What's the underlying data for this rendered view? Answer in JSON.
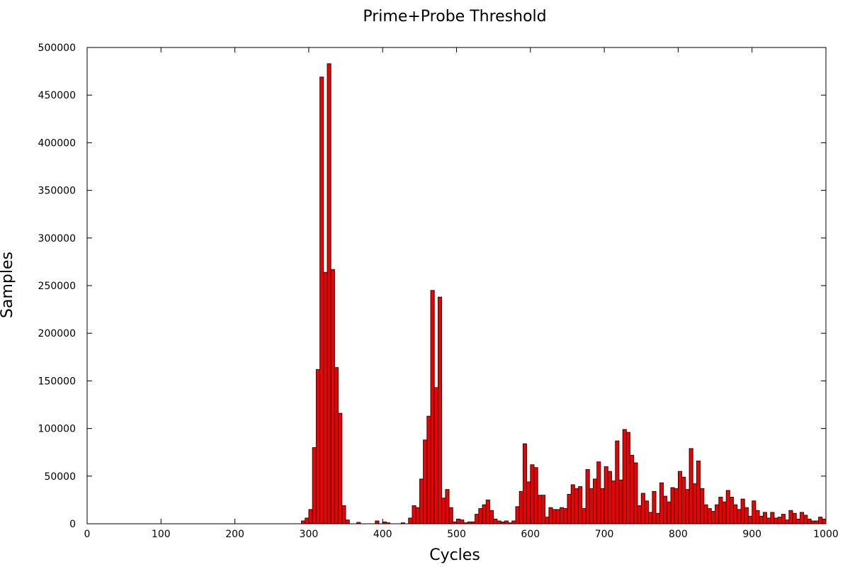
{
  "chart_data": {
    "type": "bar",
    "title": "Prime+Probe Threshold",
    "xlabel": "Cycles",
    "ylabel": "Samples",
    "xlim": [
      0,
      1000
    ],
    "ylim": [
      0,
      500000
    ],
    "x_ticks": [
      "0",
      "100",
      "200",
      "300",
      "400",
      "500",
      "600",
      "700",
      "800",
      "900",
      "1000"
    ],
    "y_ticks": [
      "0",
      "50000",
      "100000",
      "150000",
      "200000",
      "250000",
      "300000",
      "350000",
      "400000",
      "450000",
      "500000"
    ],
    "grid": false,
    "bar_width": 5,
    "bar_color": "#ee0000",
    "bar_stroke": "#000000",
    "x": [
      290,
      295,
      300,
      305,
      310,
      315,
      320,
      325,
      330,
      335,
      340,
      345,
      350,
      365,
      390,
      400,
      405,
      425,
      435,
      440,
      445,
      450,
      455,
      460,
      465,
      470,
      475,
      480,
      485,
      490,
      495,
      500,
      505,
      510,
      515,
      520,
      525,
      530,
      535,
      540,
      545,
      550,
      555,
      560,
      565,
      570,
      575,
      580,
      585,
      590,
      595,
      600,
      605,
      610,
      615,
      620,
      625,
      630,
      635,
      640,
      645,
      650,
      655,
      660,
      665,
      670,
      675,
      680,
      685,
      690,
      695,
      700,
      705,
      710,
      715,
      720,
      725,
      730,
      735,
      740,
      745,
      750,
      755,
      760,
      765,
      770,
      775,
      780,
      785,
      790,
      795,
      800,
      805,
      810,
      815,
      820,
      825,
      830,
      835,
      840,
      845,
      850,
      855,
      860,
      865,
      870,
      875,
      880,
      885,
      890,
      895,
      900,
      905,
      910,
      915,
      920,
      925,
      930,
      935,
      940,
      945,
      950,
      955,
      960,
      965,
      970,
      975,
      980,
      985,
      990,
      995
    ],
    "values": [
      3000,
      6000,
      15000,
      80000,
      162000,
      469000,
      264000,
      483000,
      267000,
      164000,
      116000,
      19000,
      4000,
      1500,
      3000,
      2000,
      1000,
      1000,
      6000,
      19000,
      17000,
      47000,
      88000,
      113000,
      245000,
      143000,
      238000,
      27000,
      36000,
      17000,
      2000,
      5000,
      4000,
      1000,
      2000,
      2000,
      10000,
      16000,
      20000,
      25000,
      14000,
      5000,
      3000,
      2000,
      3000,
      1000,
      3000,
      18000,
      34000,
      84000,
      44000,
      62000,
      59000,
      30000,
      30000,
      7000,
      17000,
      15000,
      15000,
      17000,
      16000,
      31000,
      41000,
      37000,
      39000,
      16000,
      57000,
      37000,
      47000,
      65000,
      37000,
      60000,
      55000,
      45000,
      87000,
      46000,
      99000,
      96000,
      72000,
      64000,
      19000,
      32000,
      24000,
      12000,
      34000,
      11000,
      43000,
      29000,
      23000,
      38000,
      37000,
      55000,
      49000,
      36000,
      79000,
      42000,
      66000,
      37000,
      20000,
      16000,
      13000,
      20000,
      28000,
      23000,
      35000,
      28000,
      20000,
      15000,
      26000,
      17000,
      8000,
      24000,
      14000,
      8000,
      12000,
      6000,
      12000,
      6000,
      7000,
      10000,
      4000,
      14000,
      11000,
      5000,
      12000,
      9000,
      5000,
      3000,
      3000,
      7000,
      5000
    ]
  }
}
